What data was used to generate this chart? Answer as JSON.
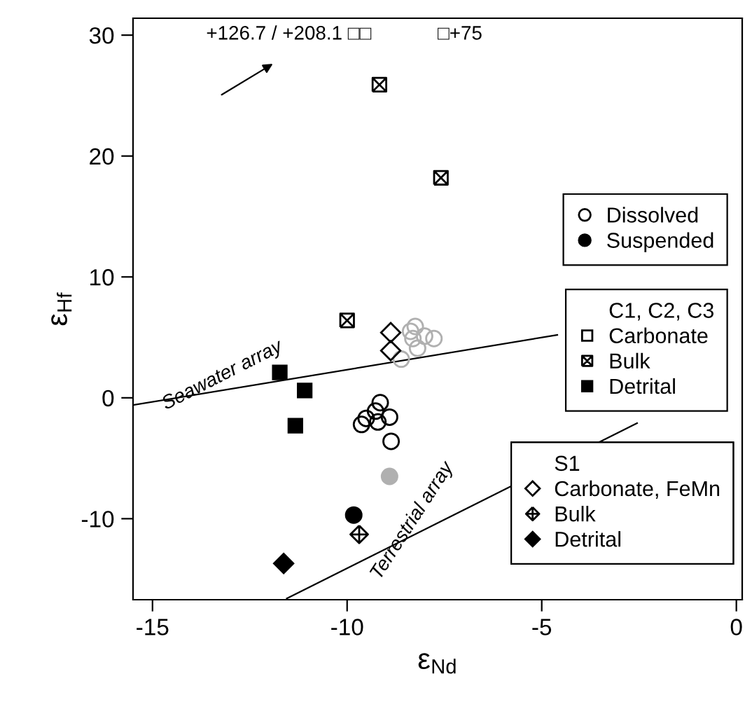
{
  "chart_data": {
    "type": "scatter",
    "xlabel": "ε$_{Nd}$",
    "ylabel": "ε$_{Hf}$",
    "xlim": [
      -15.5,
      0.15
    ],
    "ylim": [
      -16.7,
      31.4
    ],
    "xticks": [
      {
        "value": -15,
        "label": "-15"
      },
      {
        "value": -10,
        "label": "-10"
      },
      {
        "value": -5,
        "label": "-5"
      },
      0
    ],
    "yticks": [
      {
        "value": -10,
        "label": "-10"
      },
      0,
      10,
      20,
      30
    ],
    "grid": false,
    "legend": "right",
    "series": [
      {
        "name": "Seawater array",
        "type": "line",
        "color": "#000000",
        "x": [
          -15.5,
          -4.6
        ],
        "values": [
          -0.6,
          5.2
        ]
      },
      {
        "name": "Terrestrial array",
        "type": "line",
        "color": "#000000",
        "x": [
          -11.55,
          -2.55
        ],
        "values": [
          -16.6,
          -2.1
        ]
      },
      {
        "name": "Dissolved",
        "marker": "circle-open",
        "color": "#000000",
        "x": [
          -9.15,
          -9.51,
          -9.63,
          -9.21,
          -8.91,
          -8.87,
          -9.27
        ],
        "values": [
          -0.4,
          -1.7,
          -2.2,
          -2.0,
          -1.6,
          -3.6,
          -1.1
        ]
      },
      {
        "marker": "circle-open",
        "color": "#b0b0b0",
        "x": [
          -8.25,
          -8.31,
          -8.01,
          -7.77,
          -8.19,
          -8.61,
          -8.37
        ],
        "values": [
          5.9,
          4.9,
          5.1,
          4.9,
          4.1,
          3.2,
          5.5
        ]
      },
      {
        "name": "Suspended",
        "marker": "circle",
        "color": "#000000",
        "x": [
          -9.83
        ],
        "values": [
          -9.7
        ]
      },
      {
        "marker": "circle",
        "color": "#b0b0b0",
        "x": [
          -8.91
        ],
        "values": [
          -6.5
        ]
      },
      {
        "name": "Carbonate",
        "marker": "square-open",
        "color": "#000000"
      },
      {
        "name": "Bulk",
        "marker": "cross",
        "color": "#000000",
        "x": [
          -10.0,
          -9.17,
          -7.59
        ],
        "values": [
          6.4,
          25.9,
          18.2
        ]
      },
      {
        "name": "Detrital",
        "marker": "square",
        "color": "#000000",
        "x": [
          -11.73,
          -11.09,
          -11.33
        ],
        "values": [
          2.1,
          0.6,
          -2.3
        ]
      },
      {
        "name": "Carbonate, FeMn",
        "marker": "diamond-open",
        "color": "#000000",
        "x": [
          -8.88,
          -8.88
        ],
        "values": [
          5.4,
          3.9
        ]
      },
      {
        "name": "Bulk",
        "marker": "cross",
        "color": "#000000",
        "x": [
          -9.69
        ],
        "values": [
          -11.3
        ]
      },
      {
        "name": "Detrital",
        "marker": "diamond",
        "color": "#000000",
        "x": [
          -11.63
        ],
        "values": [
          -13.7
        ]
      }
    ],
    "annotations": [
      "+126.7 / +208.1 □□",
      "□+75",
      "C1, C2, C3",
      "S1"
    ]
  }
}
